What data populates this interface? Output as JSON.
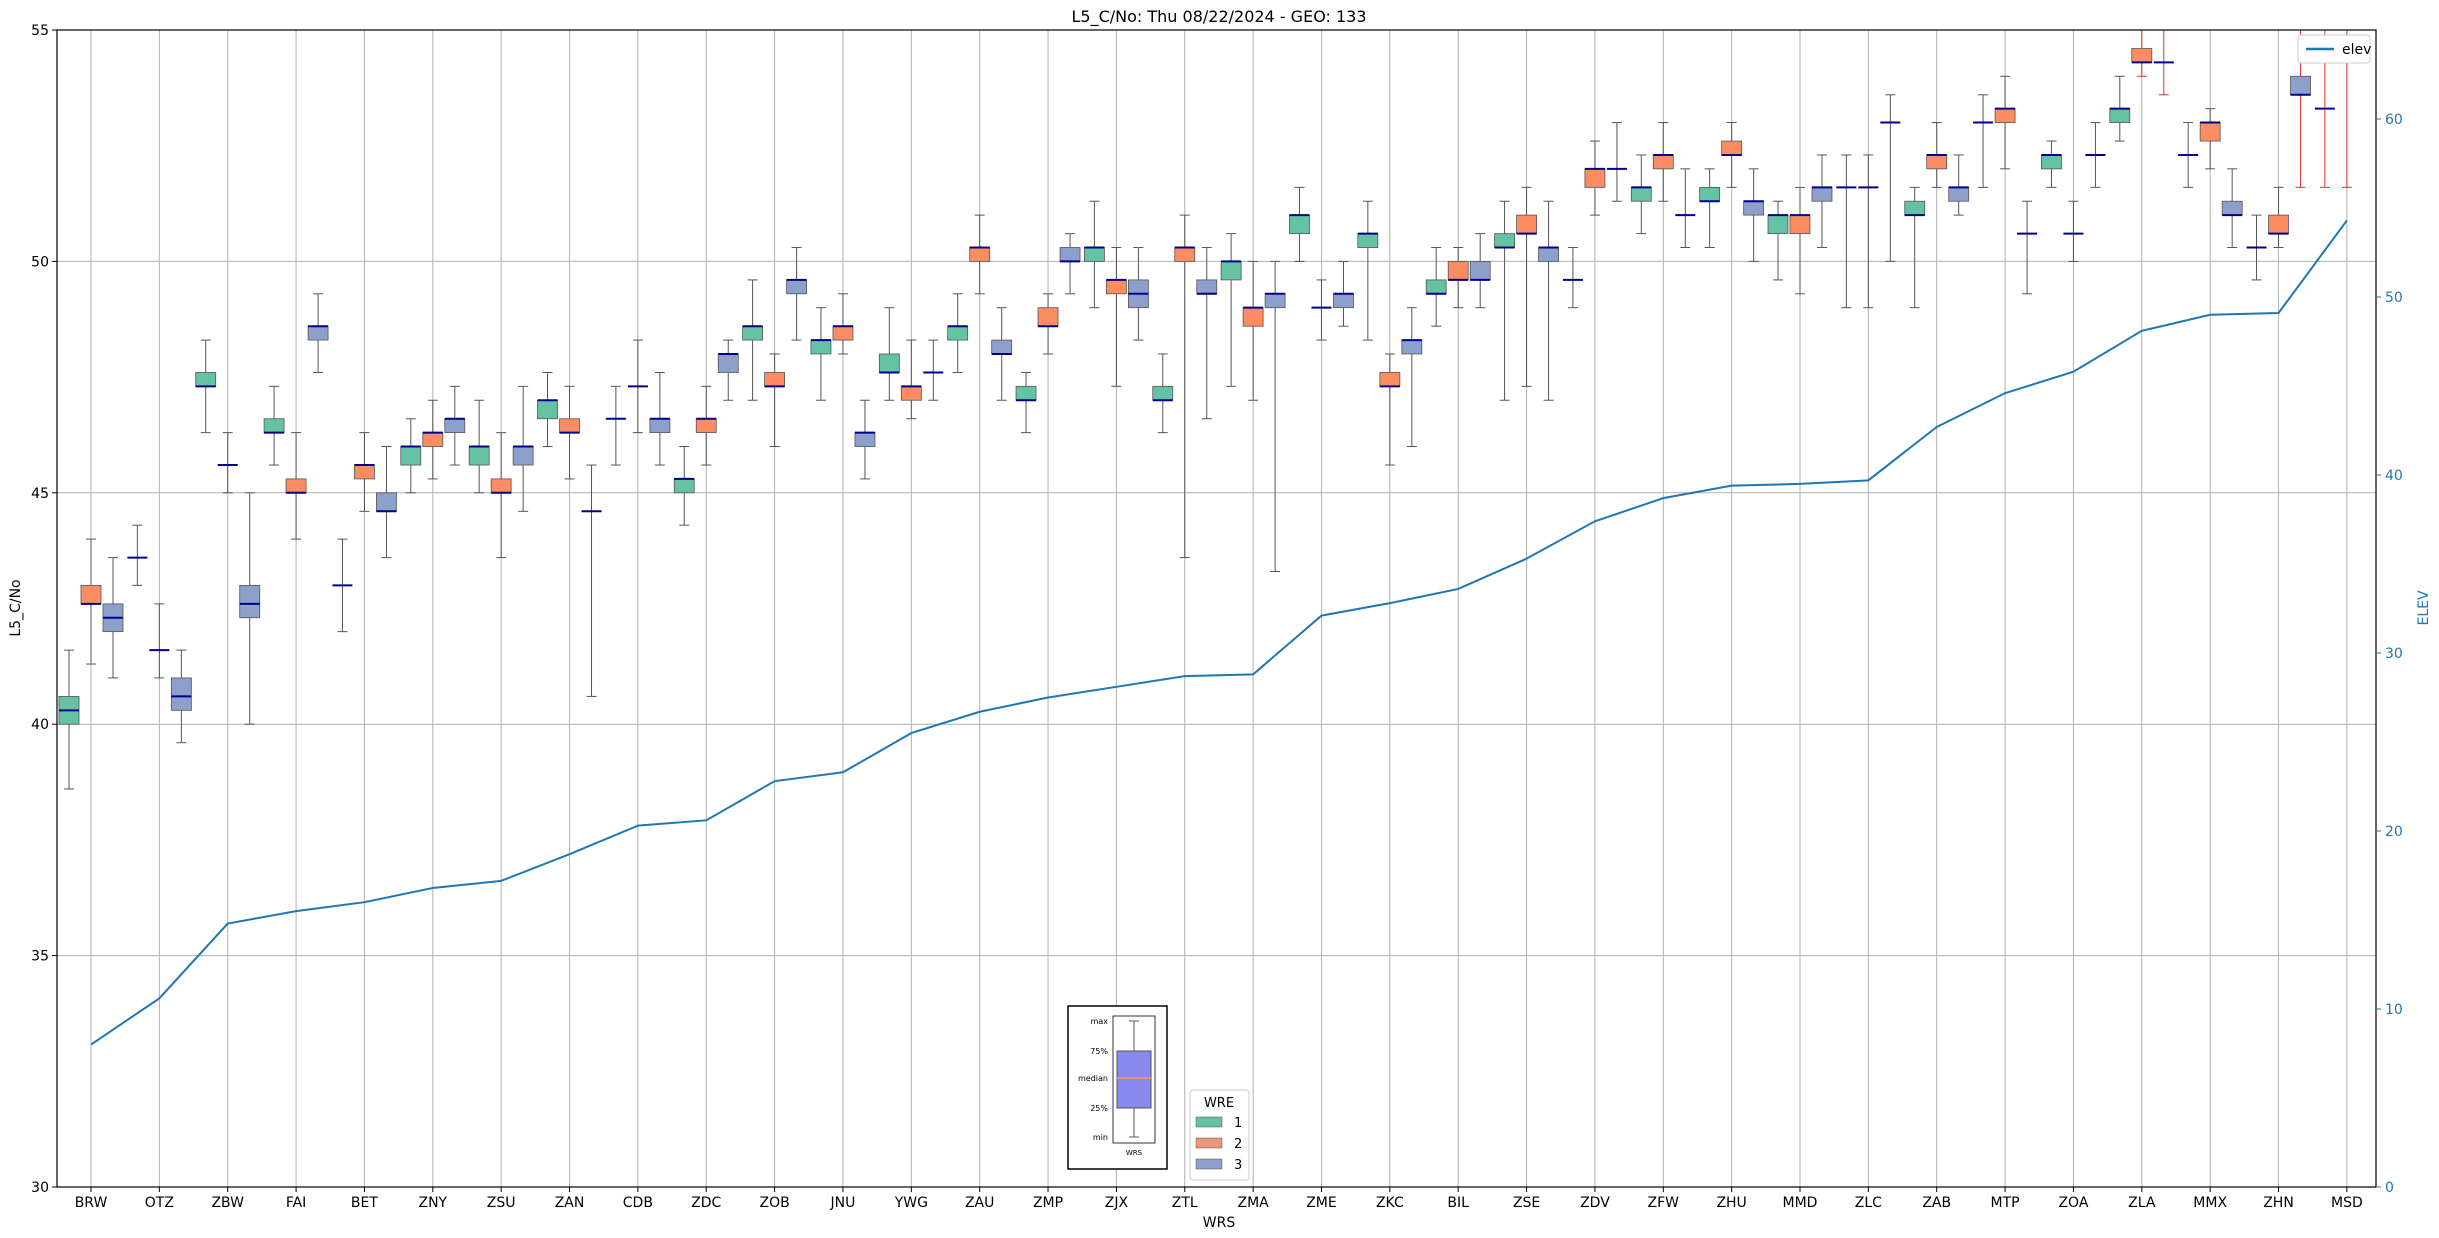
{
  "chart_data": {
    "type": "box",
    "title": "L5_C/No: Thu 08/22/2024 - GEO: 133",
    "xlabel": "WRS",
    "ylabel": "L5_C/No",
    "y2label": "ELEV",
    "ylim": [
      30,
      55
    ],
    "y2lim": [
      0,
      65
    ],
    "yticks": [
      "30",
      "35",
      "40",
      "45",
      "50",
      "55"
    ],
    "y2ticks": [
      "0",
      "10",
      "20",
      "30",
      "40",
      "50",
      "60"
    ],
    "grid": true,
    "categories": [
      "BRW",
      "OTZ",
      "ZBW",
      "FAI",
      "BET",
      "ZNY",
      "ZSU",
      "ZAN",
      "CDB",
      "ZDC",
      "ZOB",
      "JNU",
      "YWG",
      "ZAU",
      "ZMP",
      "ZJX",
      "ZTL",
      "ZMA",
      "ZME",
      "ZKC",
      "BIL",
      "ZSE",
      "ZDV",
      "ZFW",
      "ZHU",
      "MMD",
      "ZLC",
      "ZAB",
      "MTP",
      "ZOA",
      "ZLA",
      "MMX",
      "ZHN",
      "MSD"
    ],
    "wre_colors": {
      "1": "#66c2a5",
      "2": "#fc8d62",
      "3": "#8da0cb"
    },
    "legend": {
      "title": "WRE",
      "labels": [
        "1",
        "2",
        "3"
      ],
      "position": "bottom-center"
    },
    "elev_legend": {
      "label": "elev",
      "position": "top-right"
    },
    "explainer": {
      "labels": [
        "max",
        "75%",
        "median",
        "25%",
        "min"
      ],
      "xlabel": "WRS"
    },
    "boxes": [
      {
        "wrs": "BRW",
        "wre": 1,
        "min": 38.6,
        "q1": 40.0,
        "med": 40.3,
        "q3": 40.6,
        "max": 41.6
      },
      {
        "wrs": "BRW",
        "wre": 2,
        "min": 41.3,
        "q1": 42.6,
        "med": 42.6,
        "q3": 43.0,
        "max": 44.0
      },
      {
        "wrs": "BRW",
        "wre": 3,
        "min": 41.0,
        "q1": 42.0,
        "med": 42.3,
        "q3": 42.6,
        "max": 43.6
      },
      {
        "wrs": "OTZ",
        "wre": 1,
        "min": 43.0,
        "q1": 43.6,
        "med": 43.6,
        "q3": 43.6,
        "max": 44.3
      },
      {
        "wrs": "OTZ",
        "wre": 2,
        "min": 41.0,
        "q1": 41.6,
        "med": 41.6,
        "q3": 41.6,
        "max": 42.6
      },
      {
        "wrs": "OTZ",
        "wre": 3,
        "min": 39.6,
        "q1": 40.3,
        "med": 40.6,
        "q3": 41.0,
        "max": 41.6
      },
      {
        "wrs": "ZBW",
        "wre": 1,
        "min": 46.3,
        "q1": 47.3,
        "med": 47.3,
        "q3": 47.6,
        "max": 48.3
      },
      {
        "wrs": "ZBW",
        "wre": 2,
        "min": 45.0,
        "q1": 45.6,
        "med": 45.6,
        "q3": 45.6,
        "max": 46.3
      },
      {
        "wrs": "ZBW",
        "wre": 3,
        "min": 40.0,
        "q1": 42.3,
        "med": 42.6,
        "q3": 43.0,
        "max": 45.0
      },
      {
        "wrs": "FAI",
        "wre": 1,
        "min": 45.6,
        "q1": 46.3,
        "med": 46.3,
        "q3": 46.6,
        "max": 47.3
      },
      {
        "wrs": "FAI",
        "wre": 2,
        "min": 44.0,
        "q1": 45.0,
        "med": 45.0,
        "q3": 45.3,
        "max": 46.3
      },
      {
        "wrs": "FAI",
        "wre": 3,
        "min": 47.6,
        "q1": 48.3,
        "med": 48.6,
        "q3": 48.6,
        "max": 49.3
      },
      {
        "wrs": "BET",
        "wre": 1,
        "min": 42.0,
        "q1": 43.0,
        "med": 43.0,
        "q3": 43.0,
        "max": 44.0
      },
      {
        "wrs": "BET",
        "wre": 2,
        "min": 44.6,
        "q1": 45.3,
        "med": 45.6,
        "q3": 45.6,
        "max": 46.3
      },
      {
        "wrs": "BET",
        "wre": 3,
        "min": 43.6,
        "q1": 44.6,
        "med": 44.6,
        "q3": 45.0,
        "max": 46.0
      },
      {
        "wrs": "ZNY",
        "wre": 1,
        "min": 45.0,
        "q1": 45.6,
        "med": 46.0,
        "q3": 46.0,
        "max": 46.6
      },
      {
        "wrs": "ZNY",
        "wre": 2,
        "min": 45.3,
        "q1": 46.0,
        "med": 46.3,
        "q3": 46.3,
        "max": 47.0
      },
      {
        "wrs": "ZNY",
        "wre": 3,
        "min": 45.6,
        "q1": 46.3,
        "med": 46.6,
        "q3": 46.6,
        "max": 47.3
      },
      {
        "wrs": "ZSU",
        "wre": 1,
        "min": 45.0,
        "q1": 45.6,
        "med": 46.0,
        "q3": 46.0,
        "max": 47.0
      },
      {
        "wrs": "ZSU",
        "wre": 2,
        "min": 43.6,
        "q1": 45.0,
        "med": 45.0,
        "q3": 45.3,
        "max": 46.3
      },
      {
        "wrs": "ZSU",
        "wre": 3,
        "min": 44.6,
        "q1": 45.6,
        "med": 46.0,
        "q3": 46.0,
        "max": 47.3
      },
      {
        "wrs": "ZAN",
        "wre": 1,
        "min": 46.0,
        "q1": 46.6,
        "med": 47.0,
        "q3": 47.0,
        "max": 47.6
      },
      {
        "wrs": "ZAN",
        "wre": 2,
        "min": 45.3,
        "q1": 46.3,
        "med": 46.3,
        "q3": 46.6,
        "max": 47.3
      },
      {
        "wrs": "ZAN",
        "wre": 3,
        "min": 40.6,
        "q1": 44.6,
        "med": 44.6,
        "q3": 44.6,
        "max": 45.6
      },
      {
        "wrs": "CDB",
        "wre": 1,
        "min": 45.6,
        "q1": 46.6,
        "med": 46.6,
        "q3": 46.6,
        "max": 47.3
      },
      {
        "wrs": "CDB",
        "wre": 2,
        "min": 46.3,
        "q1": 47.3,
        "med": 47.3,
        "q3": 47.3,
        "max": 48.3
      },
      {
        "wrs": "CDB",
        "wre": 3,
        "min": 45.6,
        "q1": 46.3,
        "med": 46.6,
        "q3": 46.6,
        "max": 47.6
      },
      {
        "wrs": "ZDC",
        "wre": 1,
        "min": 44.3,
        "q1": 45.0,
        "med": 45.3,
        "q3": 45.3,
        "max": 46.0
      },
      {
        "wrs": "ZDC",
        "wre": 2,
        "min": 45.6,
        "q1": 46.3,
        "med": 46.6,
        "q3": 46.6,
        "max": 47.3
      },
      {
        "wrs": "ZDC",
        "wre": 3,
        "min": 47.0,
        "q1": 47.6,
        "med": 48.0,
        "q3": 48.0,
        "max": 48.3
      },
      {
        "wrs": "ZOB",
        "wre": 1,
        "min": 47.0,
        "q1": 48.3,
        "med": 48.6,
        "q3": 48.6,
        "max": 49.6
      },
      {
        "wrs": "ZOB",
        "wre": 2,
        "min": 46.0,
        "q1": 47.3,
        "med": 47.3,
        "q3": 47.6,
        "max": 48.0
      },
      {
        "wrs": "ZOB",
        "wre": 3,
        "min": 48.3,
        "q1": 49.3,
        "med": 49.6,
        "q3": 49.6,
        "max": 50.3
      },
      {
        "wrs": "JNU",
        "wre": 1,
        "min": 47.0,
        "q1": 48.0,
        "med": 48.3,
        "q3": 48.3,
        "max": 49.0
      },
      {
        "wrs": "JNU",
        "wre": 2,
        "min": 48.0,
        "q1": 48.3,
        "med": 48.6,
        "q3": 48.6,
        "max": 49.3
      },
      {
        "wrs": "JNU",
        "wre": 3,
        "min": 45.3,
        "q1": 46.0,
        "med": 46.3,
        "q3": 46.3,
        "max": 47.0
      },
      {
        "wrs": "YWG",
        "wre": 1,
        "min": 47.0,
        "q1": 47.6,
        "med": 47.6,
        "q3": 48.0,
        "max": 49.0
      },
      {
        "wrs": "YWG",
        "wre": 2,
        "min": 46.6,
        "q1": 47.0,
        "med": 47.3,
        "q3": 47.3,
        "max": 48.3
      },
      {
        "wrs": "YWG",
        "wre": 3,
        "min": 47.0,
        "q1": 47.6,
        "med": 47.6,
        "q3": 47.6,
        "max": 48.3
      },
      {
        "wrs": "ZAU",
        "wre": 1,
        "min": 47.6,
        "q1": 48.3,
        "med": 48.6,
        "q3": 48.6,
        "max": 49.3
      },
      {
        "wrs": "ZAU",
        "wre": 2,
        "min": 49.3,
        "q1": 50.0,
        "med": 50.3,
        "q3": 50.3,
        "max": 51.0
      },
      {
        "wrs": "ZAU",
        "wre": 3,
        "min": 47.0,
        "q1": 48.0,
        "med": 48.0,
        "q3": 48.3,
        "max": 49.0
      },
      {
        "wrs": "ZMP",
        "wre": 1,
        "min": 46.3,
        "q1": 47.0,
        "med": 47.0,
        "q3": 47.3,
        "max": 47.6
      },
      {
        "wrs": "ZMP",
        "wre": 2,
        "min": 48.0,
        "q1": 48.6,
        "med": 48.6,
        "q3": 49.0,
        "max": 49.3
      },
      {
        "wrs": "ZMP",
        "wre": 3,
        "min": 49.3,
        "q1": 50.0,
        "med": 50.0,
        "q3": 50.3,
        "max": 50.6
      },
      {
        "wrs": "ZJX",
        "wre": 1,
        "min": 49.0,
        "q1": 50.0,
        "med": 50.3,
        "q3": 50.3,
        "max": 51.3
      },
      {
        "wrs": "ZJX",
        "wre": 2,
        "min": 47.3,
        "q1": 49.3,
        "med": 49.6,
        "q3": 49.6,
        "max": 50.3
      },
      {
        "wrs": "ZJX",
        "wre": 3,
        "min": 48.3,
        "q1": 49.0,
        "med": 49.3,
        "q3": 49.6,
        "max": 50.3
      },
      {
        "wrs": "ZTL",
        "wre": 1,
        "min": 46.3,
        "q1": 47.0,
        "med": 47.0,
        "q3": 47.3,
        "max": 48.0
      },
      {
        "wrs": "ZTL",
        "wre": 2,
        "min": 43.6,
        "q1": 50.0,
        "med": 50.3,
        "q3": 50.3,
        "max": 51.0
      },
      {
        "wrs": "ZTL",
        "wre": 3,
        "min": 46.6,
        "q1": 49.3,
        "med": 49.3,
        "q3": 49.6,
        "max": 50.3
      },
      {
        "wrs": "ZMA",
        "wre": 1,
        "min": 47.3,
        "q1": 49.6,
        "med": 50.0,
        "q3": 50.0,
        "max": 50.6
      },
      {
        "wrs": "ZMA",
        "wre": 2,
        "min": 47.0,
        "q1": 48.6,
        "med": 49.0,
        "q3": 49.0,
        "max": 50.0
      },
      {
        "wrs": "ZMA",
        "wre": 3,
        "min": 43.3,
        "q1": 49.0,
        "med": 49.3,
        "q3": 49.3,
        "max": 50.0
      },
      {
        "wrs": "ZME",
        "wre": 1,
        "min": 50.0,
        "q1": 50.6,
        "med": 51.0,
        "q3": 51.0,
        "max": 51.6
      },
      {
        "wrs": "ZME",
        "wre": 2,
        "min": 48.3,
        "q1": 49.0,
        "med": 49.0,
        "q3": 49.0,
        "max": 49.6
      },
      {
        "wrs": "ZME",
        "wre": 3,
        "min": 48.6,
        "q1": 49.0,
        "med": 49.3,
        "q3": 49.3,
        "max": 50.0
      },
      {
        "wrs": "ZKC",
        "wre": 1,
        "min": 48.3,
        "q1": 50.3,
        "med": 50.6,
        "q3": 50.6,
        "max": 51.3
      },
      {
        "wrs": "ZKC",
        "wre": 2,
        "min": 45.6,
        "q1": 47.3,
        "med": 47.3,
        "q3": 47.6,
        "max": 48.0
      },
      {
        "wrs": "ZKC",
        "wre": 3,
        "min": 46.0,
        "q1": 48.0,
        "med": 48.3,
        "q3": 48.3,
        "max": 49.0
      },
      {
        "wrs": "BIL",
        "wre": 1,
        "min": 48.6,
        "q1": 49.3,
        "med": 49.3,
        "q3": 49.6,
        "max": 50.3
      },
      {
        "wrs": "BIL",
        "wre": 2,
        "min": 49.0,
        "q1": 49.6,
        "med": 49.6,
        "q3": 50.0,
        "max": 50.3
      },
      {
        "wrs": "BIL",
        "wre": 3,
        "min": 49.0,
        "q1": 49.6,
        "med": 49.6,
        "q3": 50.0,
        "max": 50.6
      },
      {
        "wrs": "ZSE",
        "wre": 1,
        "min": 47.0,
        "q1": 50.3,
        "med": 50.3,
        "q3": 50.6,
        "max": 51.3
      },
      {
        "wrs": "ZSE",
        "wre": 2,
        "min": 47.3,
        "q1": 50.6,
        "med": 50.6,
        "q3": 51.0,
        "max": 51.6
      },
      {
        "wrs": "ZSE",
        "wre": 3,
        "min": 47.0,
        "q1": 50.0,
        "med": 50.3,
        "q3": 50.3,
        "max": 51.3
      },
      {
        "wrs": "ZDV",
        "wre": 1,
        "min": 49.0,
        "q1": 49.6,
        "med": 49.6,
        "q3": 49.6,
        "max": 50.3
      },
      {
        "wrs": "ZDV",
        "wre": 2,
        "min": 51.0,
        "q1": 51.6,
        "med": 52.0,
        "q3": 52.0,
        "max": 52.6
      },
      {
        "wrs": "ZDV",
        "wre": 3,
        "min": 51.3,
        "q1": 52.0,
        "med": 52.0,
        "q3": 52.0,
        "max": 53.0
      },
      {
        "wrs": "ZFW",
        "wre": 1,
        "min": 50.6,
        "q1": 51.3,
        "med": 51.6,
        "q3": 51.6,
        "max": 52.3
      },
      {
        "wrs": "ZFW",
        "wre": 2,
        "min": 51.3,
        "q1": 52.0,
        "med": 52.3,
        "q3": 52.3,
        "max": 53.0
      },
      {
        "wrs": "ZFW",
        "wre": 3,
        "min": 50.3,
        "q1": 51.0,
        "med": 51.0,
        "q3": 51.0,
        "max": 52.0
      },
      {
        "wrs": "ZHU",
        "wre": 1,
        "min": 50.3,
        "q1": 51.3,
        "med": 51.3,
        "q3": 51.6,
        "max": 52.0
      },
      {
        "wrs": "ZHU",
        "wre": 2,
        "min": 51.6,
        "q1": 52.3,
        "med": 52.3,
        "q3": 52.6,
        "max": 53.0
      },
      {
        "wrs": "ZHU",
        "wre": 3,
        "min": 50.0,
        "q1": 51.0,
        "med": 51.3,
        "q3": 51.3,
        "max": 52.0
      },
      {
        "wrs": "MMD",
        "wre": 1,
        "min": 49.6,
        "q1": 50.6,
        "med": 51.0,
        "q3": 51.0,
        "max": 51.3
      },
      {
        "wrs": "MMD",
        "wre": 2,
        "min": 49.3,
        "q1": 50.6,
        "med": 51.0,
        "q3": 51.0,
        "max": 51.6
      },
      {
        "wrs": "MMD",
        "wre": 3,
        "min": 50.3,
        "q1": 51.3,
        "med": 51.6,
        "q3": 51.6,
        "max": 52.3
      },
      {
        "wrs": "ZLC",
        "wre": 1,
        "min": 49.0,
        "q1": 51.6,
        "med": 51.6,
        "q3": 51.6,
        "max": 52.3
      },
      {
        "wrs": "ZLC",
        "wre": 2,
        "min": 49.0,
        "q1": 51.6,
        "med": 51.6,
        "q3": 51.6,
        "max": 52.3
      },
      {
        "wrs": "ZLC",
        "wre": 3,
        "min": 50.0,
        "q1": 53.0,
        "med": 53.0,
        "q3": 53.0,
        "max": 53.6
      },
      {
        "wrs": "ZAB",
        "wre": 1,
        "min": 49.0,
        "q1": 51.0,
        "med": 51.0,
        "q3": 51.3,
        "max": 51.6
      },
      {
        "wrs": "ZAB",
        "wre": 2,
        "min": 51.6,
        "q1": 52.0,
        "med": 52.3,
        "q3": 52.3,
        "max": 53.0
      },
      {
        "wrs": "ZAB",
        "wre": 3,
        "min": 51.0,
        "q1": 51.3,
        "med": 51.6,
        "q3": 51.6,
        "max": 52.3
      },
      {
        "wrs": "MTP",
        "wre": 1,
        "min": 51.6,
        "q1": 53.0,
        "med": 53.0,
        "q3": 53.0,
        "max": 53.6
      },
      {
        "wrs": "MTP",
        "wre": 2,
        "min": 52.0,
        "q1": 53.0,
        "med": 53.3,
        "q3": 53.3,
        "max": 54.0
      },
      {
        "wrs": "MTP",
        "wre": 3,
        "min": 49.3,
        "q1": 50.6,
        "med": 50.6,
        "q3": 50.6,
        "max": 51.3
      },
      {
        "wrs": "ZOA",
        "wre": 1,
        "min": 51.6,
        "q1": 52.0,
        "med": 52.3,
        "q3": 52.3,
        "max": 52.6
      },
      {
        "wrs": "ZOA",
        "wre": 2,
        "min": 50.0,
        "q1": 50.6,
        "med": 50.6,
        "q3": 50.6,
        "max": 51.3
      },
      {
        "wrs": "ZOA",
        "wre": 3,
        "min": 51.6,
        "q1": 52.3,
        "med": 52.3,
        "q3": 52.3,
        "max": 53.0
      },
      {
        "wrs": "ZLA",
        "wre": 1,
        "min": 52.6,
        "q1": 53.0,
        "med": 53.3,
        "q3": 53.3,
        "max": 54.0
      },
      {
        "wrs": "ZLA",
        "wre": 2,
        "min": 54.0,
        "q1": 54.3,
        "med": 54.3,
        "q3": 54.6,
        "max": 55.0
      },
      {
        "wrs": "ZLA",
        "wre": 3,
        "min": 53.6,
        "q1": 54.3,
        "med": 54.3,
        "q3": 54.3,
        "max": 55.0
      },
      {
        "wrs": "MMX",
        "wre": 1,
        "min": 51.6,
        "q1": 52.3,
        "med": 52.3,
        "q3": 52.3,
        "max": 53.0
      },
      {
        "wrs": "MMX",
        "wre": 2,
        "min": 52.0,
        "q1": 52.6,
        "med": 53.0,
        "q3": 53.0,
        "max": 53.3
      },
      {
        "wrs": "MMX",
        "wre": 3,
        "min": 50.3,
        "q1": 51.0,
        "med": 51.0,
        "q3": 51.3,
        "max": 52.0
      },
      {
        "wrs": "ZHN",
        "wre": 1,
        "min": 49.6,
        "q1": 50.3,
        "med": 50.3,
        "q3": 50.3,
        "max": 51.0
      },
      {
        "wrs": "ZHN",
        "wre": 2,
        "min": 50.3,
        "q1": 50.6,
        "med": 50.6,
        "q3": 51.0,
        "max": 51.6
      },
      {
        "wrs": "ZHN",
        "wre": 3,
        "min": 51.6,
        "q1": 53.6,
        "med": 53.6,
        "q3": 54.0,
        "max": 55.0
      },
      {
        "wrs": "MSD",
        "wre": 1,
        "min": 51.6,
        "q1": 53.3,
        "med": 53.3,
        "q3": 53.3,
        "max": 55.0
      },
      {
        "wrs": "MSD",
        "wre": 2,
        "min": 51.6,
        "q1": 54.3,
        "med": 54.3,
        "q3": 54.3,
        "max": 55.0
      }
    ],
    "elev": {
      "name": "elev",
      "x": [
        "BRW",
        "OTZ",
        "ZBW",
        "FAI",
        "BET",
        "ZNY",
        "ZSU",
        "ZAN",
        "CDB",
        "ZDC",
        "ZOB",
        "JNU",
        "YWG",
        "ZAU",
        "ZMP",
        "ZJX",
        "ZTL",
        "ZMA",
        "ZME",
        "ZKC",
        "BIL",
        "ZSE",
        "ZDV",
        "ZFW",
        "ZHU",
        "MMD",
        "ZLC",
        "ZAB",
        "MTP",
        "ZOA",
        "ZLA",
        "MMX",
        "ZHN",
        "MSD"
      ],
      "values": [
        8.0,
        10.6,
        14.8,
        15.5,
        16.0,
        16.8,
        17.2,
        18.7,
        20.3,
        20.6,
        22.8,
        23.3,
        25.5,
        26.7,
        27.5,
        28.1,
        28.7,
        28.8,
        32.1,
        32.8,
        33.6,
        35.3,
        37.4,
        38.7,
        39.4,
        39.5,
        39.7,
        42.7,
        44.6,
        45.8,
        48.1,
        49.0,
        49.1,
        54.3
      ]
    }
  }
}
